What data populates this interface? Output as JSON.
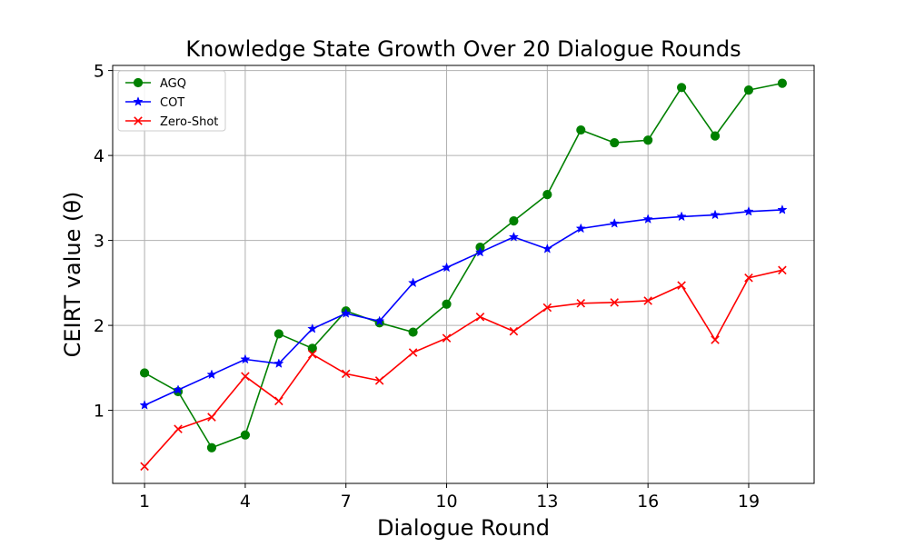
{
  "chart_data": {
    "type": "line",
    "title": "Knowledge State Growth Over 20 Dialogue Rounds",
    "xlabel": "Dialogue Round",
    "ylabel": "CEIRT value (θ)",
    "x": [
      1,
      2,
      3,
      4,
      5,
      6,
      7,
      8,
      9,
      10,
      11,
      12,
      13,
      14,
      15,
      16,
      17,
      18,
      19,
      20
    ],
    "xlim": [
      0.05,
      20.95
    ],
    "ylim": [
      0.14,
      5.06
    ],
    "xticks": [
      1,
      4,
      7,
      10,
      13,
      16,
      19
    ],
    "yticks": [
      1,
      2,
      3,
      4,
      5
    ],
    "grid": true,
    "legend_position": "top-left",
    "series": [
      {
        "name": "AGQ",
        "color": "#008000",
        "marker": "circle",
        "values": [
          1.44,
          1.22,
          0.56,
          0.71,
          1.9,
          1.73,
          2.17,
          2.03,
          1.92,
          2.25,
          2.92,
          3.23,
          3.54,
          4.3,
          4.15,
          4.18,
          4.8,
          4.23,
          4.77,
          4.85
        ]
      },
      {
        "name": "COT",
        "color": "#0000ff",
        "marker": "star",
        "values": [
          1.06,
          1.24,
          1.42,
          1.6,
          1.55,
          1.96,
          2.14,
          2.05,
          2.5,
          2.68,
          2.86,
          3.04,
          2.9,
          3.14,
          3.2,
          3.25,
          3.28,
          3.3,
          3.34,
          3.36
        ]
      },
      {
        "name": "Zero-Shot",
        "color": "#ff0000",
        "marker": "x",
        "values": [
          0.34,
          0.78,
          0.92,
          1.4,
          1.11,
          1.66,
          1.43,
          1.35,
          1.68,
          1.85,
          2.1,
          1.93,
          2.21,
          2.26,
          2.27,
          2.29,
          2.47,
          1.83,
          2.56,
          2.65
        ]
      }
    ]
  }
}
